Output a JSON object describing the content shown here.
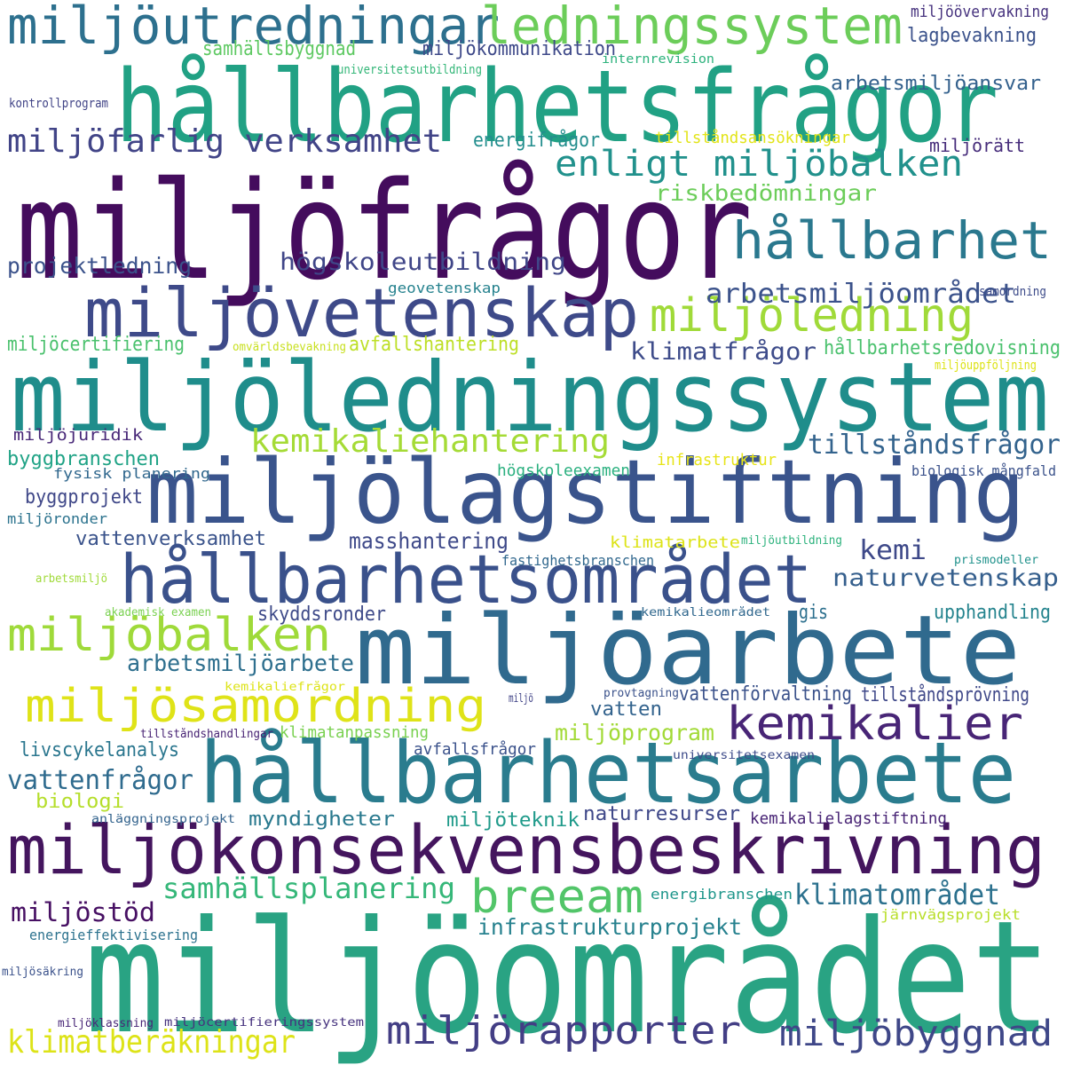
{
  "words": [
    {
      "text": "miljöfrågor",
      "color": "#440c5d"
    },
    {
      "text": "miljöområdet",
      "color": "#29a383"
    },
    {
      "text": "hållbarhetsfrågor",
      "color": "#21a184"
    },
    {
      "text": "miljöledningssystem",
      "color": "#1f8d8b"
    },
    {
      "text": "miljöarbete",
      "color": "#306a8e"
    },
    {
      "text": "miljölagstiftning",
      "color": "#3a548c"
    },
    {
      "text": "hållbarhetsarbete",
      "color": "#2a7c8e"
    },
    {
      "text": "miljökonsekvensbeskrivning",
      "color": "#44155e"
    },
    {
      "text": "hållbarhetsområdet",
      "color": "#3a518b"
    },
    {
      "text": "miljövetenskap",
      "color": "#3e4a89"
    },
    {
      "text": "miljöutredningar",
      "color": "#2d708e"
    },
    {
      "text": "ledningssystem",
      "color": "#6ccd5a"
    },
    {
      "text": "hållbarhet",
      "color": "#2a788e"
    },
    {
      "text": "miljöledning",
      "color": "#a0da39"
    },
    {
      "text": "miljöbalken",
      "color": "#9fda3a"
    },
    {
      "text": "miljösamordning",
      "color": "#dfe318"
    },
    {
      "text": "kemikalier",
      "color": "#482576"
    },
    {
      "text": "breeam",
      "color": "#52c569"
    },
    {
      "text": "miljörapporter",
      "color": "#433e85"
    },
    {
      "text": "miljöbyggnad",
      "color": "#3f4788"
    },
    {
      "text": "enligt miljöbalken",
      "color": "#21918c"
    },
    {
      "text": "miljöfarlig verksamhet",
      "color": "#414487"
    },
    {
      "text": "kemikaliehantering",
      "color": "#a5db36"
    },
    {
      "text": "klimatberäkningar",
      "color": "#dde318"
    },
    {
      "text": "samhällsplanering",
      "color": "#35b779"
    },
    {
      "text": "klimatområdet",
      "color": "#2c718e"
    },
    {
      "text": "vattenfrågor",
      "color": "#2f6b8e"
    },
    {
      "text": "tillståndsfrågor",
      "color": "#33638d"
    },
    {
      "text": "arbetsmiljöområdet",
      "color": "#3b528b"
    },
    {
      "text": "högskoleutbildning",
      "color": "#404688"
    },
    {
      "text": "klimatfrågor",
      "color": "#3e4c8a"
    },
    {
      "text": "naturvetenskap",
      "color": "#355f8d"
    },
    {
      "text": "arbetsmiljöarbete",
      "color": "#2e6f8e"
    },
    {
      "text": "miljöstöd",
      "color": "#471063"
    },
    {
      "text": "infrastrukturprojekt",
      "color": "#26818e"
    },
    {
      "text": "riskbedömningar",
      "color": "#6ccd5a"
    },
    {
      "text": "projektledning",
      "color": "#3b528b"
    },
    {
      "text": "masshantering",
      "color": "#3e4989"
    },
    {
      "text": "kemi",
      "color": "#3e4989"
    },
    {
      "text": "miljöprogram",
      "color": "#a2da37"
    },
    {
      "text": "livscykelanalys",
      "color": "#2a768e"
    },
    {
      "text": "myndigheter",
      "color": "#29798e"
    },
    {
      "text": "naturresurser",
      "color": "#3f4889"
    },
    {
      "text": "miljöteknik",
      "color": "#1f9a8a"
    },
    {
      "text": "vattenverksamhet",
      "color": "#3a538b"
    },
    {
      "text": "hållbarhetsredovisning",
      "color": "#4ac16d"
    },
    {
      "text": "arbetsmiljöansvar",
      "color": "#34618d"
    },
    {
      "text": "energifrågor",
      "color": "#228d8d"
    },
    {
      "text": "avfallshantering",
      "color": "#bddf26"
    },
    {
      "text": "byggbranschen",
      "color": "#20a386"
    },
    {
      "text": "byggprojekt",
      "color": "#3f4788"
    },
    {
      "text": "upphandling",
      "color": "#25848e"
    },
    {
      "text": "skyddsronder",
      "color": "#3e4a89"
    },
    {
      "text": "vattenförvaltning",
      "color": "#3b528b"
    },
    {
      "text": "tillståndsprövning",
      "color": "#3f4889"
    },
    {
      "text": "vatten",
      "color": "#33638d"
    },
    {
      "text": "gis",
      "color": "#2d708e"
    },
    {
      "text": "miljöcertifiering",
      "color": "#4ac16d"
    },
    {
      "text": "biologi",
      "color": "#b5de2b"
    },
    {
      "text": "samhällsbyggnad",
      "color": "#5ec962"
    },
    {
      "text": "miljökommunikation",
      "color": "#3e4989"
    },
    {
      "text": "lagbevakning",
      "color": "#3b528b"
    },
    {
      "text": "miljöövervakning",
      "color": "#46327e"
    },
    {
      "text": "miljörätt",
      "color": "#472d7b"
    },
    {
      "text": "tillståndsansökningar",
      "color": "#e2e418"
    },
    {
      "text": "högskoleexamen",
      "color": "#2ab07f"
    },
    {
      "text": "infrastruktur",
      "color": "#e7e419"
    },
    {
      "text": "klimatarbete",
      "color": "#dde318"
    },
    {
      "text": "avfallsfrågor",
      "color": "#3b528b"
    },
    {
      "text": "klimatanpassning",
      "color": "#7ad151"
    },
    {
      "text": "miljöjuridik",
      "color": "#482878"
    },
    {
      "text": "kemikalielagstiftning",
      "color": "#482475"
    },
    {
      "text": "geovetenskap",
      "color": "#26828e"
    },
    {
      "text": "energieffektivisering",
      "color": "#2c728e"
    },
    {
      "text": "fysisk planering",
      "color": "#31688e"
    },
    {
      "text": "miljöronder",
      "color": "#2c738e"
    },
    {
      "text": "biologisk mångfald",
      "color": "#3b528b"
    },
    {
      "text": "fastighetsbranschen",
      "color": "#31688e"
    },
    {
      "text": "energibranschen",
      "color": "#1f968b"
    },
    {
      "text": "järnvägsprojekt",
      "color": "#b8de29"
    },
    {
      "text": "samordning",
      "color": "#3e4c8a"
    },
    {
      "text": "miljöuppföljning",
      "color": "#dde318"
    },
    {
      "text": "omvärldsbevakning",
      "color": "#c8e020"
    },
    {
      "text": "universitetsutbildning",
      "color": "#35b779"
    },
    {
      "text": "internrevision",
      "color": "#2db27d"
    },
    {
      "text": "kontrollprogram",
      "color": "#414487"
    },
    {
      "text": "akademisk examen",
      "color": "#7ad151"
    },
    {
      "text": "arbetsmiljö",
      "color": "#a0da39"
    },
    {
      "text": "prismodeller",
      "color": "#20928c"
    },
    {
      "text": "miljöutbildning",
      "color": "#2db27d"
    },
    {
      "text": "kemikalieområdet",
      "color": "#31688e"
    },
    {
      "text": "kemikaliefrågor",
      "color": "#dde318"
    },
    {
      "text": "provtagning",
      "color": "#3b528b"
    },
    {
      "text": "miljö",
      "color": "#414487"
    },
    {
      "text": "tillståndshandlingar",
      "color": "#482374"
    },
    {
      "text": "universitetsexamen",
      "color": "#3e4c8a"
    },
    {
      "text": "anläggningsprojekt",
      "color": "#33638d"
    },
    {
      "text": "miljösäkring",
      "color": "#3b528b"
    },
    {
      "text": "miljöklassning",
      "color": "#482677"
    },
    {
      "text": "miljöcertifieringssystem",
      "color": "#46327e"
    }
  ]
}
